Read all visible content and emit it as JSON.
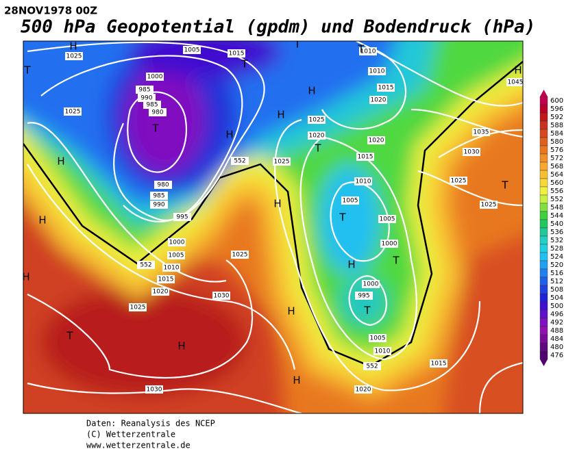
{
  "header": {
    "date": "28NOV1978 00Z",
    "title": "500 hPa Geopotential (gpdm) und Bodendruck (hPa)"
  },
  "credits": [
    "Daten: Reanalysis des NCEP",
    "(C) Wetterzentrale",
    "www.wetterzentrale.de"
  ],
  "colorbar": {
    "values": [
      600,
      596,
      592,
      588,
      584,
      580,
      576,
      572,
      568,
      564,
      560,
      556,
      552,
      548,
      544,
      540,
      536,
      532,
      528,
      524,
      520,
      516,
      512,
      508,
      504,
      500,
      496,
      492,
      488,
      484,
      480,
      476
    ],
    "colors": [
      "#c0004e",
      "#b8002a",
      "#c01818",
      "#c83020",
      "#d84820",
      "#e06020",
      "#e87820",
      "#f09028",
      "#f8a830",
      "#f8c030",
      "#f8d838",
      "#f0f040",
      "#c8f040",
      "#80e040",
      "#40d040",
      "#20c860",
      "#20c898",
      "#20d0c0",
      "#20d0e0",
      "#20c0f0",
      "#20a0f0",
      "#2080f0",
      "#2060e8",
      "#2040e0",
      "#2020d8",
      "#4010d0",
      "#6010c8",
      "#8010c0",
      "#9010b0",
      "#7a0a9a",
      "#600880",
      "#500070"
    ]
  },
  "isobar_labels": [
    "1025",
    "1005",
    "1015",
    "1010",
    "1010",
    "1015",
    "1020",
    "1000",
    "985",
    "990",
    "985",
    "980",
    "1025",
    "1025",
    "1020",
    "1020",
    "1015",
    "1025",
    "1010",
    "1005",
    "1005",
    "1000",
    "995",
    "980",
    "985",
    "990",
    "1000",
    "1005",
    "1010",
    "1015",
    "1020",
    "1025",
    "1025",
    "1030",
    "1000",
    "995",
    "1005",
    "1010",
    "1015",
    "1020",
    "1030",
    "1035",
    "1030",
    "1025",
    "1025",
    "1045",
    "552",
    "552",
    "552"
  ],
  "pressure_centers": [
    "H",
    "T",
    "T",
    "H",
    "H",
    "T",
    "T",
    "T",
    "H",
    "H",
    "T",
    "H",
    "H",
    "T",
    "H",
    "H",
    "T",
    "T",
    "H",
    "T",
    "H",
    "H",
    "T",
    "H"
  ]
}
